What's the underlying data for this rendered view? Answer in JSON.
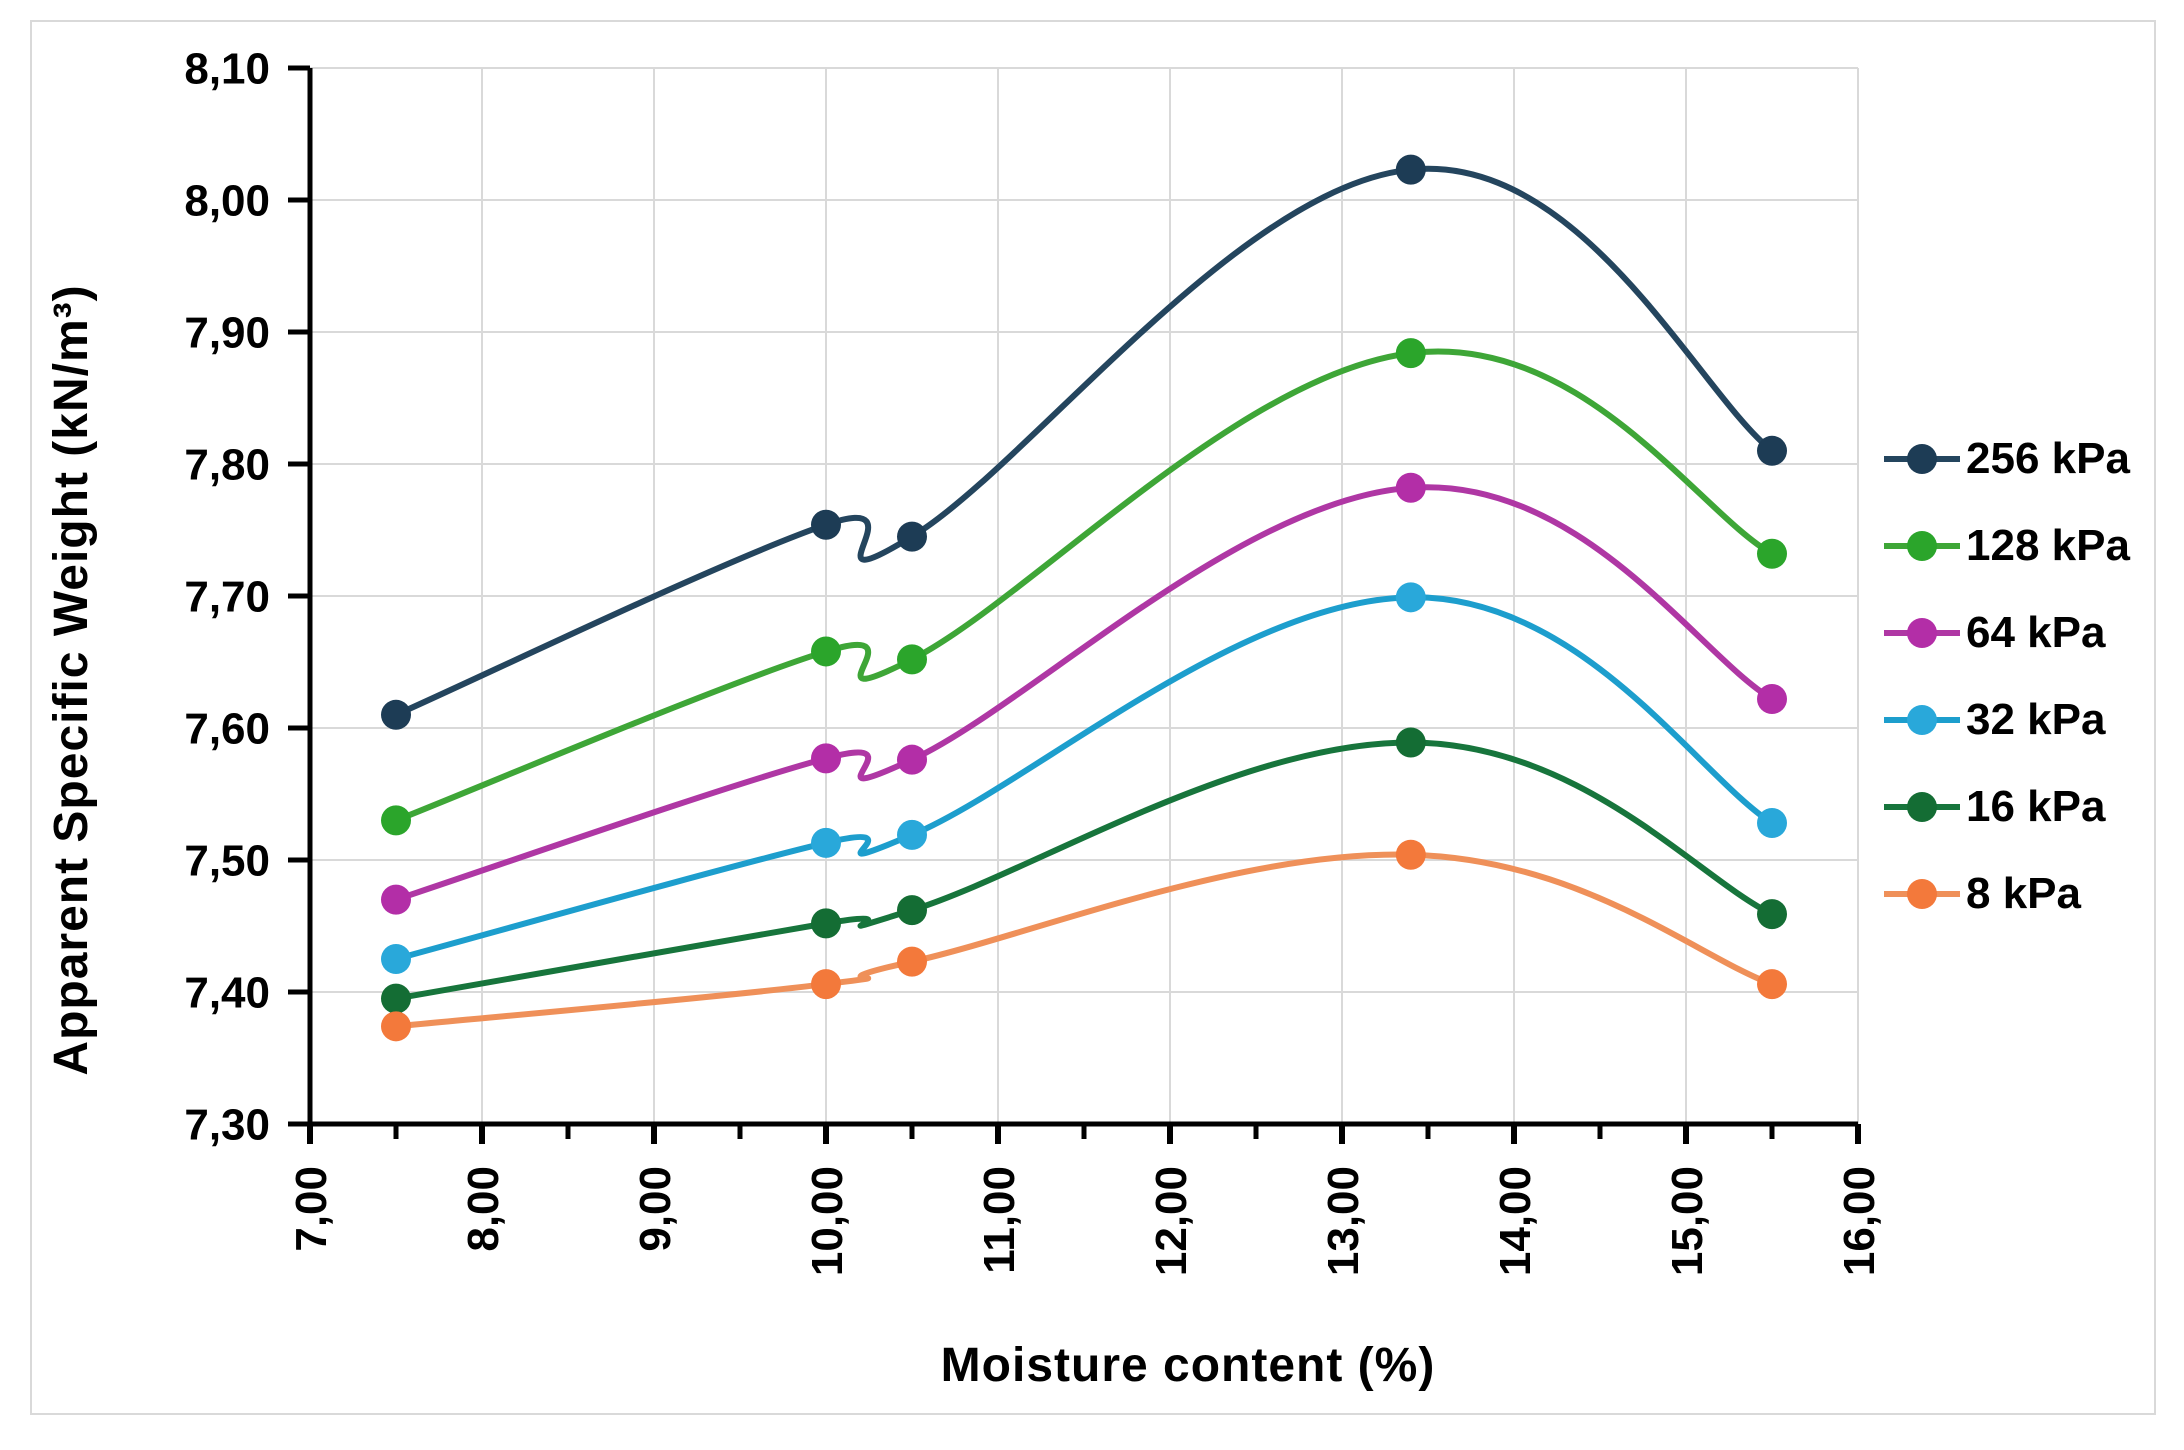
{
  "figure": {
    "background": "#ffffff",
    "border_color": "#d9d9d9",
    "gridline_color": "#d9d9d9",
    "axis_color": "#000000"
  },
  "chart_data": {
    "type": "line",
    "title": "",
    "xlabel": "Moisture content (%)",
    "ylabel": "Apparent Specific Weight (kN/m³)",
    "x": [
      7.5,
      10.0,
      10.5,
      13.4,
      15.5
    ],
    "series": [
      {
        "name": "256 kPa",
        "color": "#1d3c55",
        "line_color": "#24455e",
        "values": [
          7.61,
          7.754,
          7.745,
          8.023,
          7.81
        ]
      },
      {
        "name": "128 kPa",
        "color": "#2ba52b",
        "line_color": "#3ea637",
        "values": [
          7.53,
          7.658,
          7.652,
          7.884,
          7.732
        ]
      },
      {
        "name": "64 kPa",
        "color": "#b32ea7",
        "line_color": "#af37a4",
        "values": [
          7.47,
          7.577,
          7.576,
          7.782,
          7.622
        ]
      },
      {
        "name": "32 kPa",
        "color": "#29a8da",
        "line_color": "#1d9ecd",
        "values": [
          7.425,
          7.513,
          7.519,
          7.699,
          7.528
        ]
      },
      {
        "name": "16 kPa",
        "color": "#146d34",
        "line_color": "#17753c",
        "values": [
          7.395,
          7.452,
          7.462,
          7.589,
          7.459
        ]
      },
      {
        "name": "8 kPa",
        "color": "#f3793b",
        "line_color": "#ef9059",
        "values": [
          7.374,
          7.406,
          7.423,
          7.504,
          7.406
        ]
      }
    ],
    "xlim": [
      7.0,
      16.0
    ],
    "ylim": [
      7.3,
      8.1
    ],
    "x_tick_step": 1.0,
    "x_minor_tick_step": 0.5,
    "y_tick_step": 0.1,
    "x_tick_labels": [
      "7,00",
      "8,00",
      "9,00",
      "10,00",
      "11,00",
      "12,00",
      "13,00",
      "14,00",
      "15,00",
      "16,00"
    ],
    "y_tick_labels": [
      "7,30",
      "7,40",
      "7,50",
      "7,60",
      "7,70",
      "7,80",
      "7,90",
      "8,00",
      "8,10"
    ],
    "decimal_separator": ",",
    "grid": true,
    "line_smoothing": true,
    "legend_position": "right"
  }
}
